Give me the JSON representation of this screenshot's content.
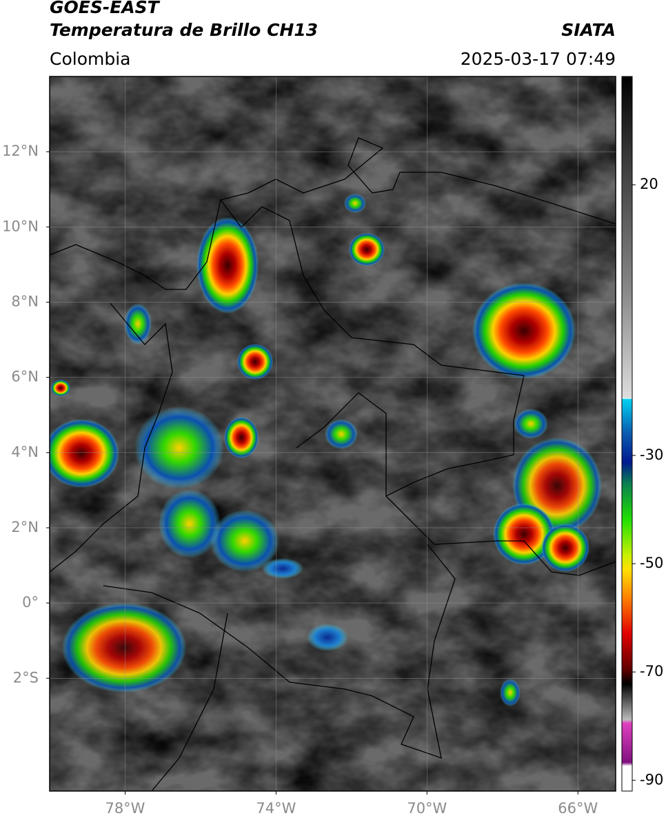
{
  "header": {
    "satellite": "GOES-EAST",
    "product": "Temperatura de Brillo CH13",
    "source": "SIATA",
    "region": "Colombia",
    "datetime": "2025-03-17 07:49"
  },
  "map": {
    "xlim": [
      -80,
      -65
    ],
    "ylim": [
      -5,
      14
    ],
    "xticks": [
      {
        "value": -78,
        "label": "78°W"
      },
      {
        "value": -74,
        "label": "74°W"
      },
      {
        "value": -70,
        "label": "70°W"
      },
      {
        "value": -66,
        "label": "66°W"
      }
    ],
    "yticks": [
      {
        "value": 12,
        "label": "12°N"
      },
      {
        "value": 10,
        "label": "10°N"
      },
      {
        "value": 8,
        "label": "8°N"
      },
      {
        "value": 6,
        "label": "6°N"
      },
      {
        "value": 4,
        "label": "4°N"
      },
      {
        "value": 2,
        "label": "2°N"
      },
      {
        "value": 0,
        "label": "0°"
      },
      {
        "value": -2,
        "label": "2°S"
      }
    ],
    "grid": true
  },
  "colorbar": {
    "lim": [
      -92,
      40
    ],
    "ticks": [
      20,
      -30,
      -50,
      -70,
      -90
    ]
  }
}
